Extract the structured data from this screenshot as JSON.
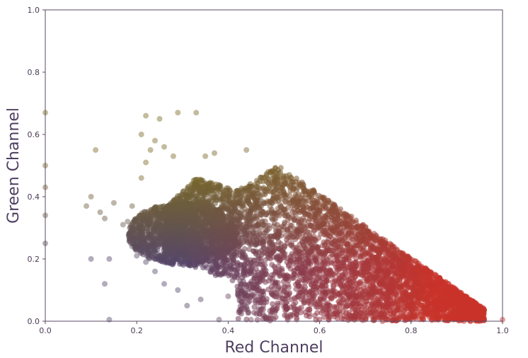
{
  "chart_data": {
    "type": "scatter",
    "title": "",
    "xlabel": "Red Channel",
    "ylabel": "Green Channel",
    "xlim": [
      0.0,
      1.0
    ],
    "ylim": [
      0.0,
      1.0
    ],
    "x_ticks": [
      "0.0",
      "0.2",
      "0.4",
      "0.6",
      "0.8",
      "1.0"
    ],
    "y_ticks": [
      "0.0",
      "0.2",
      "0.4",
      "0.6",
      "0.8",
      "1.0"
    ],
    "grid": false,
    "legend": "none",
    "colors": {
      "purple": "#55466a",
      "olive": "#7a6a26",
      "red": "#c8332a",
      "axis": "#5a4a66"
    },
    "points": [
      [
        0.0,
        0.67
      ],
      [
        0.0,
        0.5
      ],
      [
        0.0,
        0.43
      ],
      [
        0.0,
        0.34
      ],
      [
        0.0,
        0.25
      ],
      [
        0.11,
        0.55
      ],
      [
        0.1,
        0.4
      ],
      [
        0.09,
        0.37
      ],
      [
        0.12,
        0.35
      ],
      [
        0.13,
        0.33
      ],
      [
        0.1,
        0.2
      ],
      [
        0.13,
        0.12
      ],
      [
        0.14,
        0.2
      ],
      [
        0.15,
        0.38
      ],
      [
        0.17,
        0.31
      ],
      [
        0.18,
        0.32
      ],
      [
        0.19,
        0.37
      ],
      [
        0.21,
        0.6
      ],
      [
        0.22,
        0.66
      ],
      [
        0.25,
        0.65
      ],
      [
        0.29,
        0.67
      ],
      [
        0.19,
        0.24
      ],
      [
        0.2,
        0.21
      ],
      [
        0.22,
        0.19
      ],
      [
        0.24,
        0.16
      ],
      [
        0.26,
        0.12
      ],
      [
        0.29,
        0.1
      ],
      [
        0.21,
        0.46
      ],
      [
        0.22,
        0.51
      ],
      [
        0.23,
        0.55
      ],
      [
        0.24,
        0.58
      ],
      [
        0.26,
        0.56
      ],
      [
        0.28,
        0.53
      ],
      [
        0.33,
        0.67
      ],
      [
        0.35,
        0.53
      ],
      [
        0.37,
        0.54
      ],
      [
        0.44,
        0.55
      ],
      [
        0.14,
        0.005
      ],
      [
        0.38,
        0.005
      ],
      [
        0.45,
        0.005
      ],
      [
        0.55,
        0.005
      ],
      [
        0.62,
        0.005
      ],
      [
        0.7,
        0.005
      ],
      [
        0.75,
        0.005
      ],
      [
        0.8,
        0.005
      ],
      [
        0.86,
        0.005
      ],
      [
        0.91,
        0.005
      ],
      [
        0.95,
        0.005
      ],
      [
        1.0,
        0.005
      ],
      [
        0.45,
        0.08
      ],
      [
        0.43,
        0.04
      ],
      [
        0.4,
        0.08
      ],
      [
        0.34,
        0.07
      ],
      [
        0.31,
        0.05
      ]
    ]
  }
}
